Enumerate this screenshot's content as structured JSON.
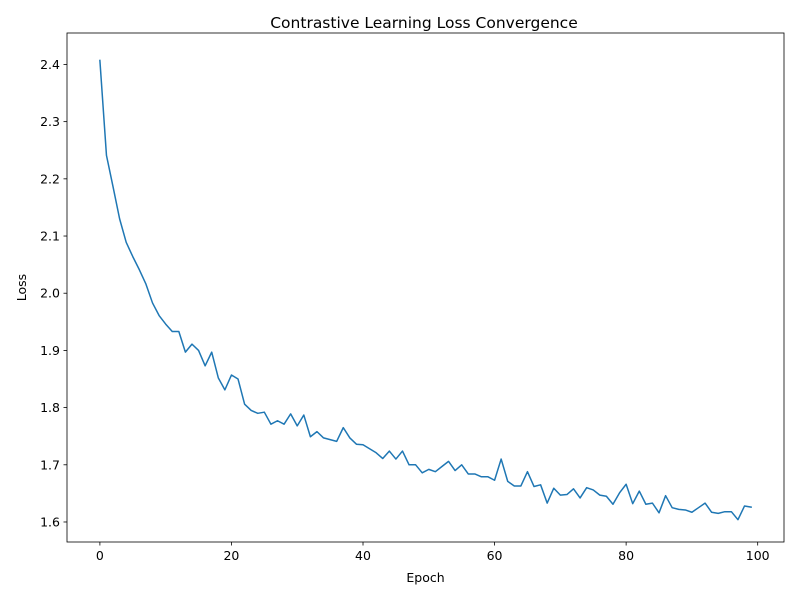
{
  "chart_data": {
    "type": "line",
    "title": "Contrastive Learning Loss Convergence",
    "xlabel": "Epoch",
    "ylabel": "Loss",
    "xlim": [
      -5,
      104
    ],
    "ylim": [
      1.565,
      2.455
    ],
    "xticks": [
      0,
      20,
      40,
      60,
      80,
      100
    ],
    "yticks": [
      1.6,
      1.7,
      1.8,
      1.9,
      2.0,
      2.1,
      2.2,
      2.3,
      2.4
    ],
    "xtick_labels": [
      "0",
      "20",
      "40",
      "60",
      "80",
      "100"
    ],
    "ytick_labels": [
      "1.6",
      "1.7",
      "1.8",
      "1.9",
      "2.0",
      "2.1",
      "2.2",
      "2.3",
      "2.4"
    ],
    "grid": false,
    "line_color": "#1f77b4",
    "series": [
      {
        "x": [
          0,
          1,
          2,
          3,
          4,
          5,
          6,
          7,
          8,
          9,
          10,
          11,
          12,
          13,
          14,
          15,
          16,
          17,
          18,
          19,
          20,
          21,
          22,
          23,
          24,
          25,
          26,
          27,
          28,
          29,
          30,
          31,
          32,
          33,
          34,
          35,
          36,
          37,
          38,
          39,
          40,
          41,
          42,
          43,
          44,
          45,
          46,
          47,
          48,
          49,
          50,
          51,
          52,
          53,
          54,
          55,
          56,
          57,
          58,
          59,
          60,
          61,
          62,
          63,
          64,
          65,
          66,
          67,
          68,
          69,
          70,
          71,
          72,
          73,
          74,
          75,
          76,
          77,
          78,
          79,
          80,
          81,
          82,
          83,
          84,
          85,
          86,
          87,
          88,
          89,
          90,
          91,
          92,
          93,
          94,
          95,
          96,
          97,
          98,
          99
        ],
        "values": [
          2.407,
          2.241,
          2.186,
          2.13,
          2.089,
          2.064,
          2.041,
          2.016,
          1.983,
          1.961,
          1.946,
          1.933,
          1.933,
          1.897,
          1.911,
          1.9,
          1.873,
          1.897,
          1.852,
          1.831,
          1.857,
          1.85,
          1.806,
          1.795,
          1.79,
          1.792,
          1.771,
          1.777,
          1.771,
          1.789,
          1.768,
          1.787,
          1.749,
          1.758,
          1.747,
          1.744,
          1.741,
          1.765,
          1.747,
          1.736,
          1.735,
          1.728,
          1.721,
          1.711,
          1.724,
          1.71,
          1.724,
          1.7,
          1.7,
          1.686,
          1.692,
          1.688,
          1.697,
          1.706,
          1.69,
          1.7,
          1.684,
          1.684,
          1.679,
          1.679,
          1.673,
          1.71,
          1.671,
          1.663,
          1.663,
          1.688,
          1.662,
          1.665,
          1.633,
          1.659,
          1.647,
          1.648,
          1.658,
          1.642,
          1.66,
          1.656,
          1.647,
          1.645,
          1.631,
          1.651,
          1.666,
          1.632,
          1.654,
          1.631,
          1.633,
          1.616,
          1.646,
          1.625,
          1.622,
          1.621,
          1.617,
          1.625,
          1.633,
          1.617,
          1.615,
          1.618,
          1.618,
          1.604,
          1.628,
          1.626
        ]
      }
    ]
  }
}
